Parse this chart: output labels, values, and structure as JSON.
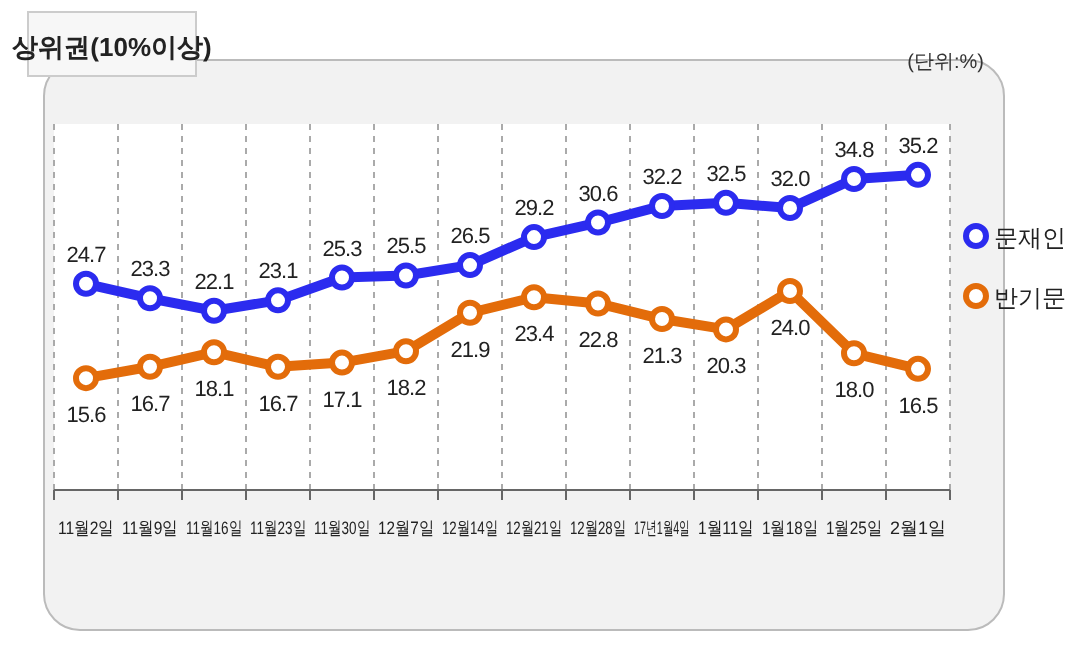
{
  "chart_data": {
    "type": "line",
    "title": "상위권(10%이상)",
    "annotations": [
      "(단위:%)"
    ],
    "categories": [
      "11월2일",
      "11월9일",
      "11월16일",
      "11월23일",
      "11월30일",
      "12월7일",
      "12월14일",
      "12월21일",
      "12월28일",
      "17년1월4일",
      "1월11일",
      "1월18일",
      "1월25일",
      "2월1일"
    ],
    "series": [
      {
        "name": "문재인",
        "color": "#2b2bef",
        "values": [
          24.7,
          23.3,
          22.1,
          23.1,
          25.3,
          25.5,
          26.5,
          29.2,
          30.6,
          32.2,
          32.5,
          32.0,
          34.8,
          35.2
        ],
        "value_labels": [
          "24.7",
          "23.3",
          "22.1",
          "23.1",
          "25.3",
          "25.5",
          "26.5",
          "29.2",
          "30.6",
          "32.2",
          "32.5",
          "32.0",
          "34.8",
          "35.2"
        ]
      },
      {
        "name": "반기문",
        "color": "#e36c0a",
        "values": [
          15.6,
          16.7,
          18.1,
          16.7,
          17.1,
          18.2,
          21.9,
          23.4,
          22.8,
          21.3,
          20.3,
          24.0,
          18.0,
          16.5
        ],
        "value_labels": [
          "15.6",
          "16.7",
          "18.1",
          "16.7",
          "17.1",
          "18.2",
          "21.9",
          "23.4",
          "22.8",
          "21.3",
          "20.3",
          "24.0",
          "18.0",
          "16.5"
        ]
      }
    ],
    "legend": "right",
    "marker": "circle",
    "grid": "x"
  }
}
